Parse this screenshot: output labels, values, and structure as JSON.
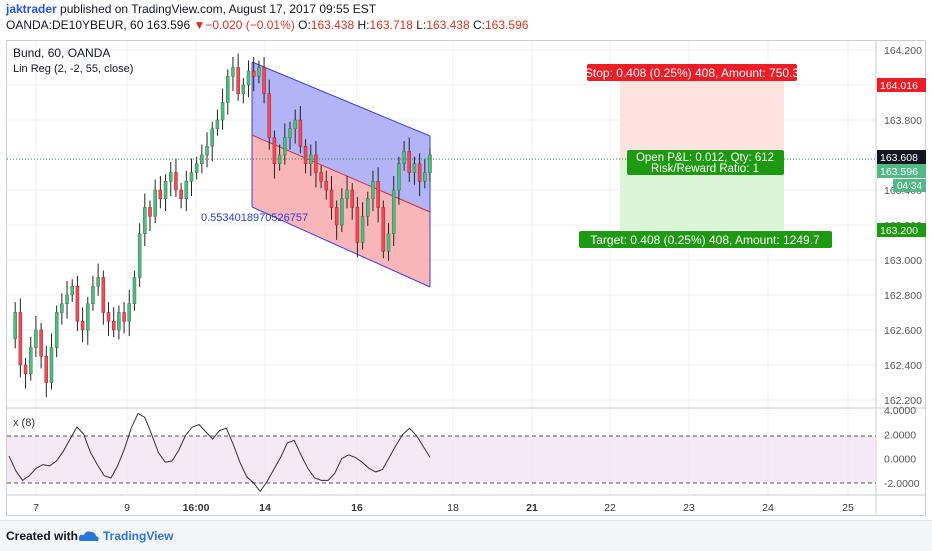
{
  "header": {
    "author": "jaktrader",
    "published_text": "published on",
    "site": "TradingView.com",
    "date": ", August 17, 2017 09:55 EST",
    "symbol_line": "OANDA:DE10YBEUR, 60",
    "last_price": "163.596",
    "change_arrow": "▼",
    "change": "−0.020 (−0.01%)",
    "ohlc": {
      "o_label": "O:",
      "o": "163.438",
      "h_label": "H:",
      "h": "163.718",
      "l_label": "L:",
      "l": "163.438",
      "c_label": "C:",
      "c": "163.596"
    }
  },
  "chart_data": {
    "type": "line",
    "title": "Bund, 60, OANDA",
    "indicator": "Lin Reg (2, -2, 55, close)",
    "regression_label": "0.5534018970526757",
    "y_ticks": [
      "164.200",
      "164.000",
      "163.800",
      "163.600",
      "163.400",
      "163.200",
      "163.000",
      "162.800",
      "162.600",
      "162.400",
      "162.200"
    ],
    "ylim": [
      162.2,
      164.2
    ],
    "x_ticks": [
      "7",
      "9",
      "16:00",
      "14",
      "16",
      "18",
      "21",
      "22",
      "23",
      "24",
      "25"
    ],
    "oscillator": {
      "title": "x (8)",
      "y_ticks": [
        "4.0000",
        "2.0000",
        "0.0000",
        "-2.0000"
      ],
      "levels": [
        2,
        -2
      ],
      "ylim": [
        -3,
        4
      ],
      "series": [
        {
          "values": [
            0.2,
            -1.0,
            -1.8,
            -1.4,
            -0.8,
            -0.5,
            -0.6,
            -0.2,
            0.6,
            1.6,
            2.6,
            2.0,
            0.5,
            -0.5,
            -1.4,
            -1.6,
            -0.6,
            0.8,
            2.5,
            3.7,
            3.4,
            2.0,
            0.5,
            -0.3,
            -0.2,
            0.7,
            1.9,
            2.6,
            2.8,
            2.2,
            1.6,
            2.3,
            2.5,
            1.2,
            -0.3,
            -1.5,
            -2.0,
            -2.7,
            -1.9,
            -0.9,
            0.1,
            1.3,
            1.5,
            0.3,
            -0.8,
            -1.6,
            -1.8,
            -1.8,
            -1.2,
            0.0,
            0.3,
            0.1,
            -0.3,
            -0.8,
            -1.1,
            -0.9,
            0.1,
            1.1,
            2.0,
            2.5,
            1.9,
            1.0,
            0.1
          ]
        }
      ]
    },
    "price_labels": {
      "stop_level": "164.016",
      "current": "163.608",
      "last": "163.596",
      "countdown": "04:34",
      "target_level": "163.200"
    }
  },
  "position": {
    "stop_label": "Stop: 0.408 (0.25%) 408, Amount: 750.3",
    "pnl_label": "Open P&L: 0.012, Qty: 612",
    "rr_label": "Risk/Reward Ratio: 1",
    "target_label": "Target: 0.408 (0.25%) 408, Amount: 1249.7"
  },
  "footer": {
    "created": "Created with",
    "brand": "TradingView"
  },
  "colors": {
    "up": "#53b987",
    "down": "#eb4d5c",
    "candle_body_up": "#2e7d32",
    "regression_upper": "#a4a7f5",
    "regression_lower": "#f7a9ad",
    "stop_fill": "#fde3df",
    "target_fill": "#dbf3d6",
    "stop_tag": "#ee1c25",
    "target_tag": "#1d9a12",
    "axis_blue": "#1e53e5"
  }
}
